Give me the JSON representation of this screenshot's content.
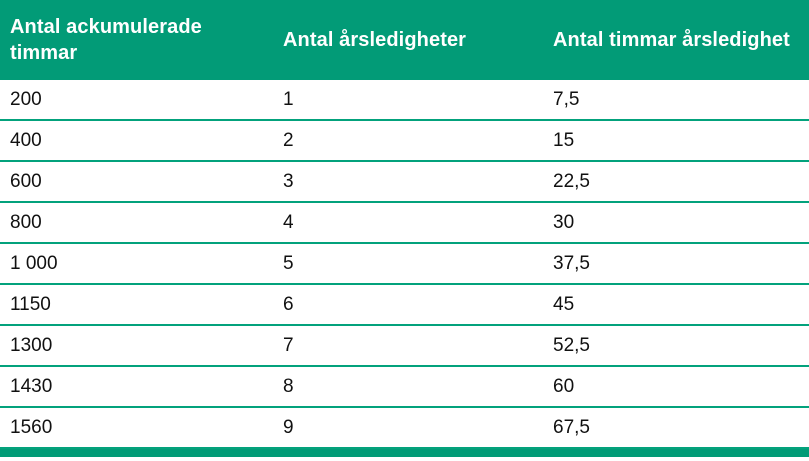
{
  "accent_color": "#029B77",
  "divider_color": "#03A27C",
  "header_text_color": "#FFFFFF",
  "body_text_color": "#111111",
  "chart_data": {
    "type": "table",
    "title": "",
    "columns": [
      "Antal ackumulerade timmar",
      "Antal årsledigheter",
      "Antal timmar årsledighet"
    ],
    "rows": [
      [
        "200",
        "1",
        "7,5"
      ],
      [
        "400",
        "2",
        "15"
      ],
      [
        "600",
        "3",
        "22,5"
      ],
      [
        "800",
        "4",
        "30"
      ],
      [
        "1 000",
        "5",
        "37,5"
      ],
      [
        "1150",
        "6",
        "45"
      ],
      [
        "1300",
        "7",
        "52,5"
      ],
      [
        "1430",
        "8",
        "60"
      ],
      [
        "1560",
        "9",
        "67,5"
      ]
    ],
    "layout": {
      "header_background": "#029B77",
      "row_divider": "thin green line",
      "bottom_border": "thick green bar"
    }
  }
}
